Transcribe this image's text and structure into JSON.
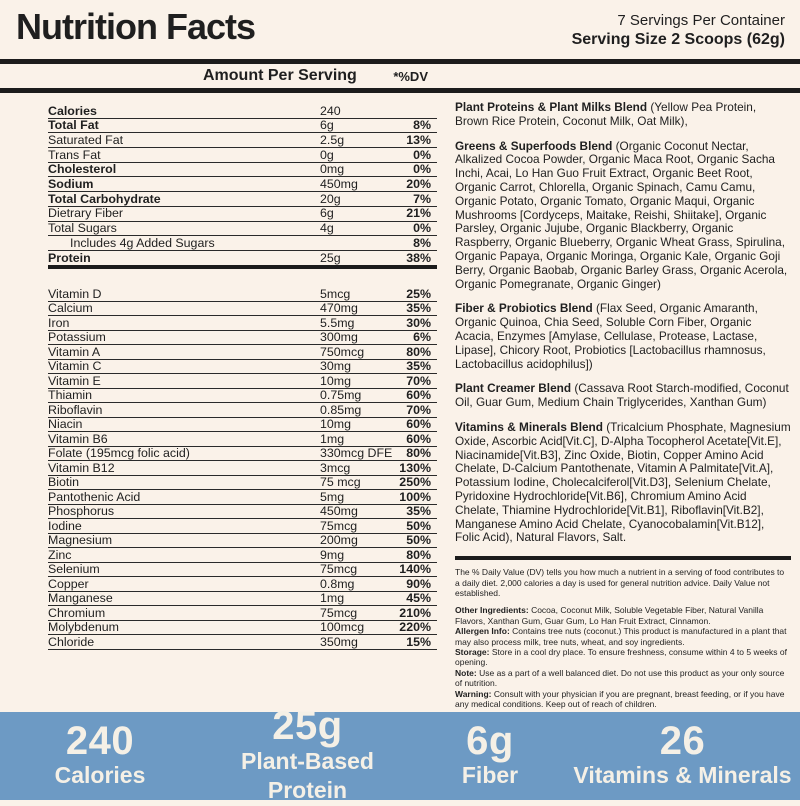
{
  "header": {
    "title": "Nutrition Facts",
    "servings_per_container": "7 Servings Per Container",
    "serving_size": "Serving Size 2 Scoops (62g)",
    "amount_per_serving_label": "Amount Per Serving",
    "dv_label": "*%DV"
  },
  "nutrition_table": {
    "main_rows": [
      {
        "label": "Calories",
        "amount": "240",
        "dv": "",
        "bold": true
      },
      {
        "label": "Total Fat",
        "amount": "6g",
        "dv": "8%",
        "bold": true
      },
      {
        "label": "Saturated Fat",
        "amount": "2.5g",
        "dv": "13%",
        "bold": false
      },
      {
        "label": "Trans Fat",
        "amount": "0g",
        "dv": "0%",
        "bold": false
      },
      {
        "label": "Cholesterol",
        "amount": "0mg",
        "dv": "0%",
        "bold": true
      },
      {
        "label": "Sodium",
        "amount": "450mg",
        "dv": "20%",
        "bold": true
      },
      {
        "label": "Total Carbohydrate",
        "amount": "20g",
        "dv": "7%",
        "bold": true
      },
      {
        "label": "Dietrary Fiber",
        "amount": "6g",
        "dv": "21%",
        "bold": false
      },
      {
        "label": "Total Sugars",
        "amount": "4g",
        "dv": "0%",
        "bold": false
      },
      {
        "label": "Includes 4g Added Sugars",
        "amount": "",
        "dv": "8%",
        "bold": false,
        "indent": true
      },
      {
        "label": "Protein",
        "amount": "25g",
        "dv": "38%",
        "bold": true
      }
    ],
    "micronutrient_rows": [
      {
        "label": "Vitamin D",
        "amount": "5mcg",
        "dv": "25%"
      },
      {
        "label": "Calcium",
        "amount": "470mg",
        "dv": "35%"
      },
      {
        "label": "Iron",
        "amount": "5.5mg",
        "dv": "30%"
      },
      {
        "label": "Potassium",
        "amount": "300mg",
        "dv": "6%"
      },
      {
        "label": "Vitamin A",
        "amount": "750mcg",
        "dv": "80%"
      },
      {
        "label": "Vitamin C",
        "amount": "30mg",
        "dv": "35%"
      },
      {
        "label": "Vitamin E",
        "amount": "10mg",
        "dv": "70%"
      },
      {
        "label": "Thiamin",
        "amount": "0.75mg",
        "dv": "60%"
      },
      {
        "label": "Riboflavin",
        "amount": "0.85mg",
        "dv": "70%"
      },
      {
        "label": "Niacin",
        "amount": "10mg",
        "dv": "60%"
      },
      {
        "label": "Vitamin B6",
        "amount": "1mg",
        "dv": "60%"
      },
      {
        "label": "Folate (195mcg folic acid)",
        "amount": "330mcg DFE",
        "dv": "80%"
      },
      {
        "label": "Vitamin B12",
        "amount": "3mcg",
        "dv": "130%"
      },
      {
        "label": "Biotin",
        "amount": "75 mcg",
        "dv": "250%"
      },
      {
        "label": "Pantothenic Acid",
        "amount": "5mg",
        "dv": "100%"
      },
      {
        "label": "Phosphorus",
        "amount": "450mg",
        "dv": "35%"
      },
      {
        "label": "Iodine",
        "amount": "75mcg",
        "dv": "50%"
      },
      {
        "label": "Magnesium",
        "amount": "200mg",
        "dv": "50%"
      },
      {
        "label": "Zinc",
        "amount": "9mg",
        "dv": "80%"
      },
      {
        "label": "Selenium",
        "amount": "75mcg",
        "dv": "140%"
      },
      {
        "label": "Copper",
        "amount": "0.8mg",
        "dv": "90%"
      },
      {
        "label": "Manganese",
        "amount": "1mg",
        "dv": "45%"
      },
      {
        "label": "Chromium",
        "amount": "75mcg",
        "dv": "210%"
      },
      {
        "label": "Molybdenum",
        "amount": "100mcg",
        "dv": "220%"
      },
      {
        "label": "Chloride",
        "amount": "350mg",
        "dv": "15%"
      }
    ]
  },
  "ingredients": {
    "blends": [
      {
        "name": "Plant Proteins & Plant Milks Blend",
        "detail": "(Yellow Pea Protein, Brown Rice Protein, Coconut Milk, Oat Milk),"
      },
      {
        "name": "Greens & Superfoods Blend",
        "detail": "(Organic Coconut Nectar, Alkalized Cocoa Powder, Organic Maca Root, Organic Sacha Inchi, Acai, Lo Han Guo Fruit Extract, Organic Beet Root, Organic Carrot, Chlorella, Organic Spinach, Camu Camu, Organic Potato, Organic Tomato, Organic Maqui, Organic Mushrooms [Cordyceps, Maitake, Reishi, Shiitake], Organic Parsley, Organic Jujube, Organic Blackberry, Organic Raspberry, Organic Blueberry, Organic Wheat Grass, Spirulina, Organic Papaya, Organic Moringa, Organic Kale, Organic Goji Berry, Organic Baobab, Organic Barley Grass, Organic Acerola, Organic Pomegranate, Organic Ginger)"
      },
      {
        "name": "Fiber & Probiotics Blend",
        "detail": "(Flax Seed, Organic Amaranth, Organic Quinoa, Chia Seed, Soluble Corn Fiber, Organic Acacia, Enzymes [Amylase, Cellulase, Protease, Lactase, Lipase], Chicory Root, Probiotics [Lactobacillus rhamnosus, Lactobacillus acidophilus])"
      },
      {
        "name": "Plant Creamer Blend",
        "detail": "(Cassava Root Starch-modified, Coconut Oil, Guar Gum, Medium Chain Triglycerides, Xanthan Gum)"
      },
      {
        "name": "Vitamins & Minerals Blend",
        "detail": "(Tricalcium Phosphate, Magnesium Oxide, Ascorbic Acid[Vit.C], D-Alpha Tocopherol Acetate[Vit.E], Niacinamide[Vit.B3], Zinc Oxide, Biotin, Copper Amino Acid Chelate, D-Calcium Pantothenate, Vitamin A Palmitate[Vit.A], Potassium Iodine, Cholecalciferol[Vit.D3], Selenium Chelate, Pyridoxine Hydrochloride[Vit.B6], Chromium Amino Acid Chelate, Thiamine Hydrochloride[Vit.B1], Riboflavin[Vit.B2], Manganese Amino Acid Chelate, Cyanocobalamin[Vit.B12], Folic Acid), Natural Flavors, Salt."
      }
    ]
  },
  "footnotes": {
    "dv_note": "The % Daily Value (DV) tells you how much a nutrient in a serving of food contributes to a daily diet. 2,000 calories a day is used for general nutrition advice. Daily Value not established.",
    "notes": [
      {
        "label": "Other Ingredients:",
        "text": "Cocoa, Coconut Milk, Soluble Vegetable Fiber, Natural Vanilla Flavors, Xanthan Gum, Guar Gum, Lo Han Fruit Extract, Cinnamon."
      },
      {
        "label": "Allergen Info:",
        "text": "Contains tree nuts (coconut.) This product is manufactured in a plant that may also process milk, tree nuts, wheat, and soy ingredients."
      },
      {
        "label": "Storage:",
        "text": "Store in a cool dry place. To ensure freshness, consume within 4 to 5 weeks of opening."
      },
      {
        "label": "Note:",
        "text": "Use as a part of a well balanced diet. Do not use this product as your only source of nutrition."
      },
      {
        "label": "Warning:",
        "text": "Consult with your physician if you are pregnant, breast feeding, or if you have any medical conditions. Keep out of reach of children."
      }
    ]
  },
  "summary_banner": {
    "background": "#6d9ac4",
    "text_color": "#f5f0e6",
    "items": [
      {
        "value": "240",
        "label": "Calories"
      },
      {
        "value": "25g",
        "label": "Plant-Based Protein"
      },
      {
        "value": "6g",
        "label": "Fiber"
      },
      {
        "value": "26",
        "label": "Vitamins & Minerals"
      }
    ]
  },
  "colors": {
    "page_background": "#faf2e9",
    "rule_color": "#1c1c1c",
    "text_color": "#1f1f1f"
  }
}
